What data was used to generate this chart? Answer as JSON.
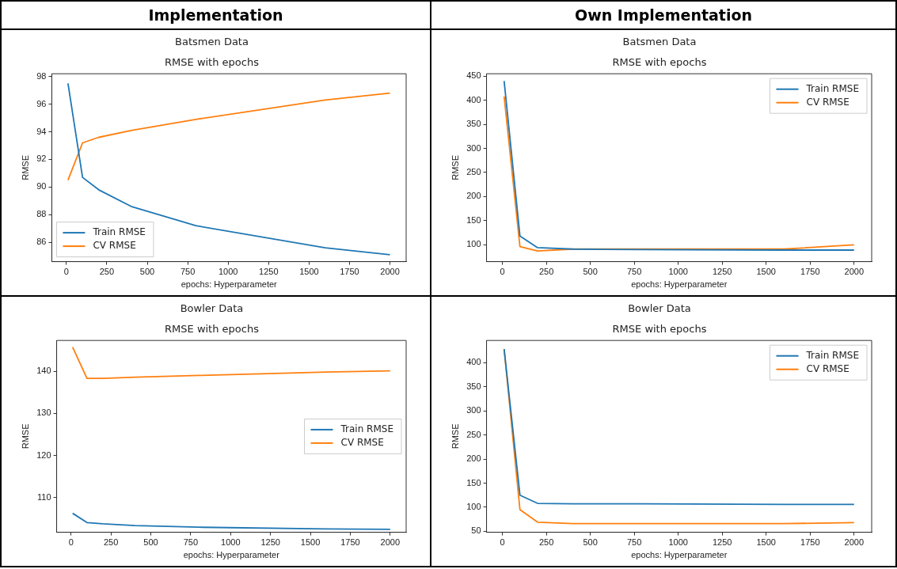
{
  "chart_data": [
    {
      "type": "line",
      "annotations": [
        "Implementation"
      ],
      "title": "Batsmen Data",
      "subtitle": "RMSE with epochs",
      "xlabel": "epochs: Hyperparameter",
      "ylabel": "RMSE",
      "x": [
        10,
        100,
        200,
        400,
        800,
        1600,
        2000
      ],
      "series": [
        {
          "name": "Train RMSE",
          "color": "#1f77b4",
          "values": [
            97.5,
            90.7,
            89.8,
            88.6,
            87.2,
            85.6,
            85.1
          ]
        },
        {
          "name": "CV RMSE",
          "color": "#ff7f0e",
          "values": [
            90.5,
            93.2,
            93.6,
            94.1,
            94.9,
            96.3,
            96.8
          ]
        }
      ],
      "xlim": [
        -90,
        2100
      ],
      "xticks": [
        0,
        250,
        500,
        750,
        1000,
        1250,
        1500,
        1750,
        2000
      ],
      "ylim": [
        84.6,
        98.2
      ],
      "yticks": [
        86,
        88,
        90,
        92,
        94,
        96,
        98
      ],
      "grid": false,
      "legend": "bottom left",
      "marker": "none",
      "line_style": "solid"
    },
    {
      "type": "line",
      "annotations": [
        "Own Implementation"
      ],
      "title": "Batsmen Data",
      "subtitle": "RMSE with epochs",
      "xlabel": "epochs: Hyperparameter",
      "ylabel": "RMSE",
      "x": [
        10,
        100,
        200,
        400,
        800,
        1600,
        2000
      ],
      "series": [
        {
          "name": "Train RMSE",
          "color": "#1f77b4",
          "values": [
            440,
            118,
            94,
            91,
            90,
            89,
            89
          ]
        },
        {
          "name": "CV RMSE",
          "color": "#ff7f0e",
          "values": [
            408,
            96,
            87,
            91,
            91,
            91,
            100
          ]
        }
      ],
      "xlim": [
        -90,
        2100
      ],
      "xticks": [
        0,
        250,
        500,
        750,
        1000,
        1250,
        1500,
        1750,
        2000
      ],
      "ylim": [
        65,
        455
      ],
      "yticks": [
        100,
        150,
        200,
        250,
        300,
        350,
        400,
        450
      ],
      "grid": false,
      "legend": "top right",
      "marker": "none",
      "line_style": "solid"
    },
    {
      "type": "line",
      "title": "Bowler Data",
      "subtitle": "RMSE with epochs",
      "xlabel": "epochs: Hyperparameter",
      "ylabel": "RMSE",
      "x": [
        10,
        100,
        200,
        400,
        800,
        1600,
        2000
      ],
      "series": [
        {
          "name": "Train RMSE",
          "color": "#1f77b4",
          "values": [
            106.3,
            104.1,
            103.8,
            103.4,
            103.0,
            102.6,
            102.5
          ]
        },
        {
          "name": "CV RMSE",
          "color": "#ff7f0e",
          "values": [
            145.7,
            138.3,
            138.3,
            138.6,
            139.0,
            139.8,
            140.1
          ]
        }
      ],
      "xlim": [
        -90,
        2100
      ],
      "xticks": [
        0,
        250,
        500,
        750,
        1000,
        1250,
        1500,
        1750,
        2000
      ],
      "ylim": [
        101.8,
        147.3
      ],
      "yticks": [
        110,
        120,
        130,
        140
      ],
      "grid": false,
      "legend": "right",
      "marker": "none",
      "line_style": "solid"
    },
    {
      "type": "line",
      "title": "Bowler Data",
      "subtitle": "RMSE with epochs",
      "xlabel": "epochs: Hyperparameter",
      "ylabel": "RMSE",
      "x": [
        10,
        100,
        200,
        400,
        800,
        1600,
        2000
      ],
      "series": [
        {
          "name": "Train RMSE",
          "color": "#1f77b4",
          "values": [
            428,
            125,
            108,
            107,
            107,
            106,
            106
          ]
        },
        {
          "name": "CV RMSE",
          "color": "#ff7f0e",
          "values": [
            428,
            95,
            69,
            66,
            66,
            66,
            68
          ]
        }
      ],
      "xlim": [
        -90,
        2100
      ],
      "xticks": [
        0,
        250,
        500,
        750,
        1000,
        1250,
        1500,
        1750,
        2000
      ],
      "ylim": [
        48,
        446
      ],
      "yticks": [
        50,
        100,
        150,
        200,
        250,
        300,
        350,
        400
      ],
      "grid": false,
      "legend": "top right",
      "marker": "none",
      "line_style": "solid"
    }
  ]
}
